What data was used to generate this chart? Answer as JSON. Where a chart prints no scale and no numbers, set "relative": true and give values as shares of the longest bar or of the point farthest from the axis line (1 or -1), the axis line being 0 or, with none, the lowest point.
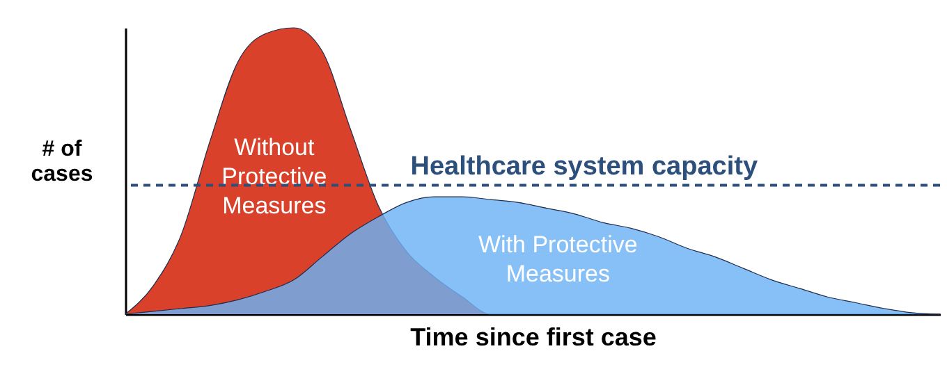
{
  "chart_data": {
    "type": "area",
    "relative": true,
    "xlabel": "Time since first case",
    "ylabel": "# of cases",
    "categories": [
      null,
      null,
      null,
      null,
      null,
      null,
      null,
      null,
      null,
      null,
      null,
      null,
      null,
      null,
      null,
      null,
      null,
      null,
      null,
      null,
      null,
      null,
      null,
      null,
      null,
      null,
      null,
      null,
      null,
      null
    ],
    "series": [
      {
        "name": "Without Protective Measures",
        "color": "#d9412b",
        "values": [
          0,
          0.1,
          0.28,
          0.6,
          0.88,
          0.98,
          1.0,
          0.92,
          0.65,
          0.38,
          0.22,
          0.13,
          0.06,
          0,
          0,
          0,
          0,
          0,
          0,
          0,
          0,
          0,
          0,
          0,
          0,
          0,
          0,
          0,
          0,
          0
        ]
      },
      {
        "name": "With Protective Measures",
        "color": "#6cb2f5",
        "values": [
          0,
          0.01,
          0.02,
          0.03,
          0.05,
          0.08,
          0.12,
          0.2,
          0.28,
          0.34,
          0.39,
          0.41,
          0.41,
          0.4,
          0.39,
          0.37,
          0.35,
          0.32,
          0.3,
          0.27,
          0.23,
          0.2,
          0.16,
          0.12,
          0.09,
          0.06,
          0.04,
          0.02,
          0.005,
          0
        ]
      }
    ],
    "ref_lines": [
      {
        "axis": "y",
        "value": 0.45,
        "label": "Healthcare system capacity",
        "color": "#2c4f7c",
        "line_style": "dashed"
      }
    ]
  }
}
